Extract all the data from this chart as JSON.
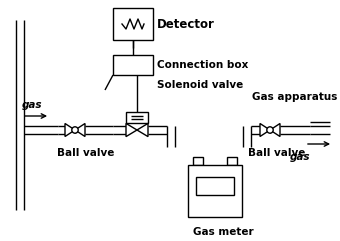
{
  "bg_color": "#ffffff",
  "line_color": "#000000",
  "labels": {
    "detector": "Detector",
    "connection_box": "Connection box",
    "solenoid_valve": "Solenoid valve",
    "gas_left": "gas",
    "gas_right": "gas",
    "ball_valve_left": "Ball valve",
    "ball_valve_right": "Ball valve",
    "gas_meter": "Gas meter",
    "gas_apparatus": "Gas apparatus"
  },
  "figsize": [
    3.4,
    2.41
  ],
  "dpi": 100
}
